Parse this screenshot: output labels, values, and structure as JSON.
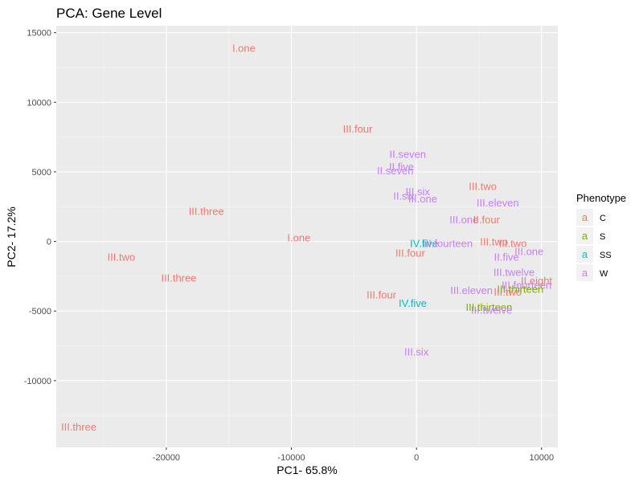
{
  "chart_data": {
    "type": "scatter",
    "title": "PCA: Gene Level",
    "xlabel": "PC1- 65.8%",
    "ylabel": "PC2- 17.2%",
    "xlim": [
      -28800,
      11300
    ],
    "ylim": [
      -14800,
      15500
    ],
    "xticks": [
      -20000,
      -10000,
      0,
      10000
    ],
    "yticks": [
      -10000,
      -5000,
      0,
      5000,
      10000,
      15000
    ],
    "grid": true,
    "legend": {
      "title": "Phenotype",
      "position": "right",
      "entries": [
        {
          "group": "C",
          "label": "C",
          "color": "#F8766D",
          "glyph": "a"
        },
        {
          "group": "S",
          "label": "S",
          "color": "#7CAE00",
          "glyph": "a"
        },
        {
          "group": "SS",
          "label": "SS",
          "color": "#00BFC4",
          "glyph": "a"
        },
        {
          "group": "W",
          "label": "W",
          "color": "#C77CFF",
          "glyph": "a"
        }
      ]
    },
    "points": [
      {
        "label": "I.one",
        "x": -13800,
        "y": 13900,
        "group": "C"
      },
      {
        "label": "III.four",
        "x": -4700,
        "y": 8100,
        "group": "C"
      },
      {
        "label": "II.seven",
        "x": -700,
        "y": 6300,
        "group": "W"
      },
      {
        "label": "II.five",
        "x": -1200,
        "y": 5400,
        "group": "W"
      },
      {
        "label": "II.seven",
        "x": -1700,
        "y": 5100,
        "group": "W"
      },
      {
        "label": "III.two",
        "x": 5300,
        "y": 4000,
        "group": "C"
      },
      {
        "label": "III.six",
        "x": 100,
        "y": 3600,
        "group": "W"
      },
      {
        "label": "II.six",
        "x": -1000,
        "y": 3300,
        "group": "W"
      },
      {
        "label": "III.one",
        "x": 500,
        "y": 3100,
        "group": "W"
      },
      {
        "label": "III.eleven",
        "x": 6500,
        "y": 2800,
        "group": "W"
      },
      {
        "label": "III.three",
        "x": -16800,
        "y": 2200,
        "group": "C"
      },
      {
        "label": "III.one",
        "x": 3800,
        "y": 1600,
        "group": "W"
      },
      {
        "label": "II.four",
        "x": 5600,
        "y": 1600,
        "group": "C"
      },
      {
        "label": "I.one",
        "x": -9400,
        "y": 300,
        "group": "C"
      },
      {
        "label": "III.two",
        "x": 6200,
        "y": 0,
        "group": "C"
      },
      {
        "label": "III.two",
        "x": 7700,
        "y": -100,
        "group": "C"
      },
      {
        "label": "IV.five",
        "x": 600,
        "y": -100,
        "group": "SS"
      },
      {
        "label": "III.fourteen",
        "x": 2500,
        "y": -100,
        "group": "W"
      },
      {
        "label": "III.four",
        "x": -500,
        "y": -800,
        "group": "C"
      },
      {
        "label": "III.one",
        "x": 9000,
        "y": -700,
        "group": "W"
      },
      {
        "label": "II.five",
        "x": 7200,
        "y": -1100,
        "group": "W"
      },
      {
        "label": "III.two",
        "x": -23600,
        "y": -1100,
        "group": "C"
      },
      {
        "label": "III.twelve",
        "x": 7800,
        "y": -2200,
        "group": "W"
      },
      {
        "label": "III.three",
        "x": -19000,
        "y": -2600,
        "group": "C"
      },
      {
        "label": "II.eight",
        "x": 9600,
        "y": -2800,
        "group": "C"
      },
      {
        "label": "III.fourteen",
        "x": 8800,
        "y": -3100,
        "group": "W"
      },
      {
        "label": "III.thirteen",
        "x": 8300,
        "y": -3400,
        "group": "S"
      },
      {
        "label": "III.eleven",
        "x": 4400,
        "y": -3500,
        "group": "W"
      },
      {
        "label": "III.two",
        "x": 7300,
        "y": -3600,
        "group": "C"
      },
      {
        "label": "III.four",
        "x": -2800,
        "y": -3800,
        "group": "C"
      },
      {
        "label": "IV.five",
        "x": -300,
        "y": -4400,
        "group": "SS"
      },
      {
        "label": "III.thirteen",
        "x": 5800,
        "y": -4700,
        "group": "S"
      },
      {
        "label": "III.twelve",
        "x": 6000,
        "y": -4900,
        "group": "W"
      },
      {
        "label": "III.six",
        "x": 0,
        "y": -7900,
        "group": "W"
      },
      {
        "label": "III.three",
        "x": -27000,
        "y": -13300,
        "group": "C"
      }
    ]
  }
}
